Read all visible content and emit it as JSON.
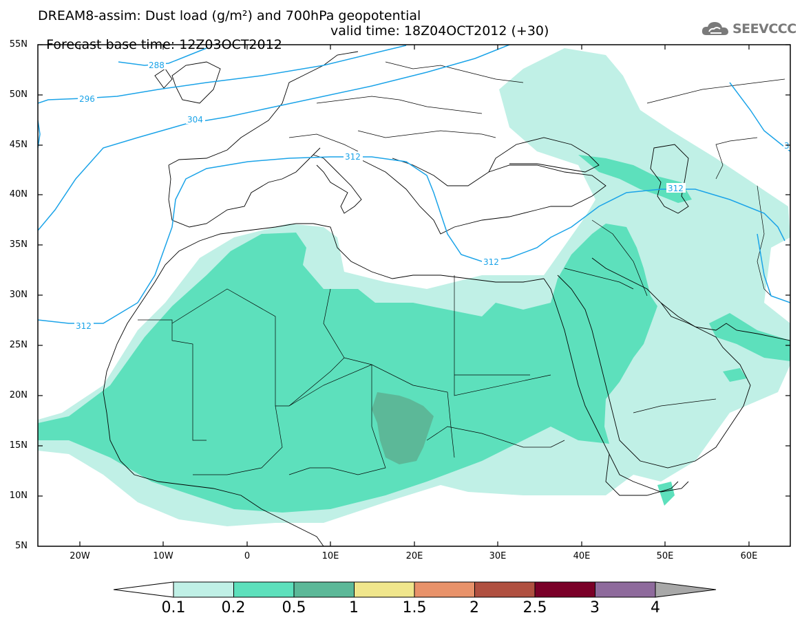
{
  "title": {
    "line1": "DREAM8-assim: Dust load (g/m²) and 700hPa geopotential",
    "line2": "Forecast base time: 12Z03OCT2012",
    "line2_valid": "valid time: 18Z04OCT2012 (+30)"
  },
  "logo": {
    "text": "SEEVCCC",
    "icon": "cloud-icon"
  },
  "map": {
    "lon_range": [
      -25,
      65
    ],
    "lat_range": [
      5,
      55
    ],
    "lat_ticks": [
      "55N",
      "50N",
      "45N",
      "40N",
      "35N",
      "30N",
      "25N",
      "20N",
      "15N",
      "10N",
      "5N"
    ],
    "lon_ticks": [
      "20W",
      "10W",
      "0",
      "10E",
      "20E",
      "30E",
      "40E",
      "50E",
      "60E"
    ],
    "contour_color": "#1aa3e8",
    "contour_labels": [
      "288",
      "296",
      "304",
      "312",
      "312",
      "312",
      "312",
      "3"
    ]
  },
  "colorbar": {
    "labels": [
      "0.1",
      "0.2",
      "0.5",
      "1",
      "1.5",
      "2",
      "2.5",
      "3",
      "4"
    ],
    "colors": [
      "#ffffff",
      "#c0f0e6",
      "#5de0bc",
      "#5cb898",
      "#f0e68c",
      "#e8926a",
      "#b05040",
      "#7a0028",
      "#8e6a9c",
      "#a8a8a8"
    ]
  }
}
